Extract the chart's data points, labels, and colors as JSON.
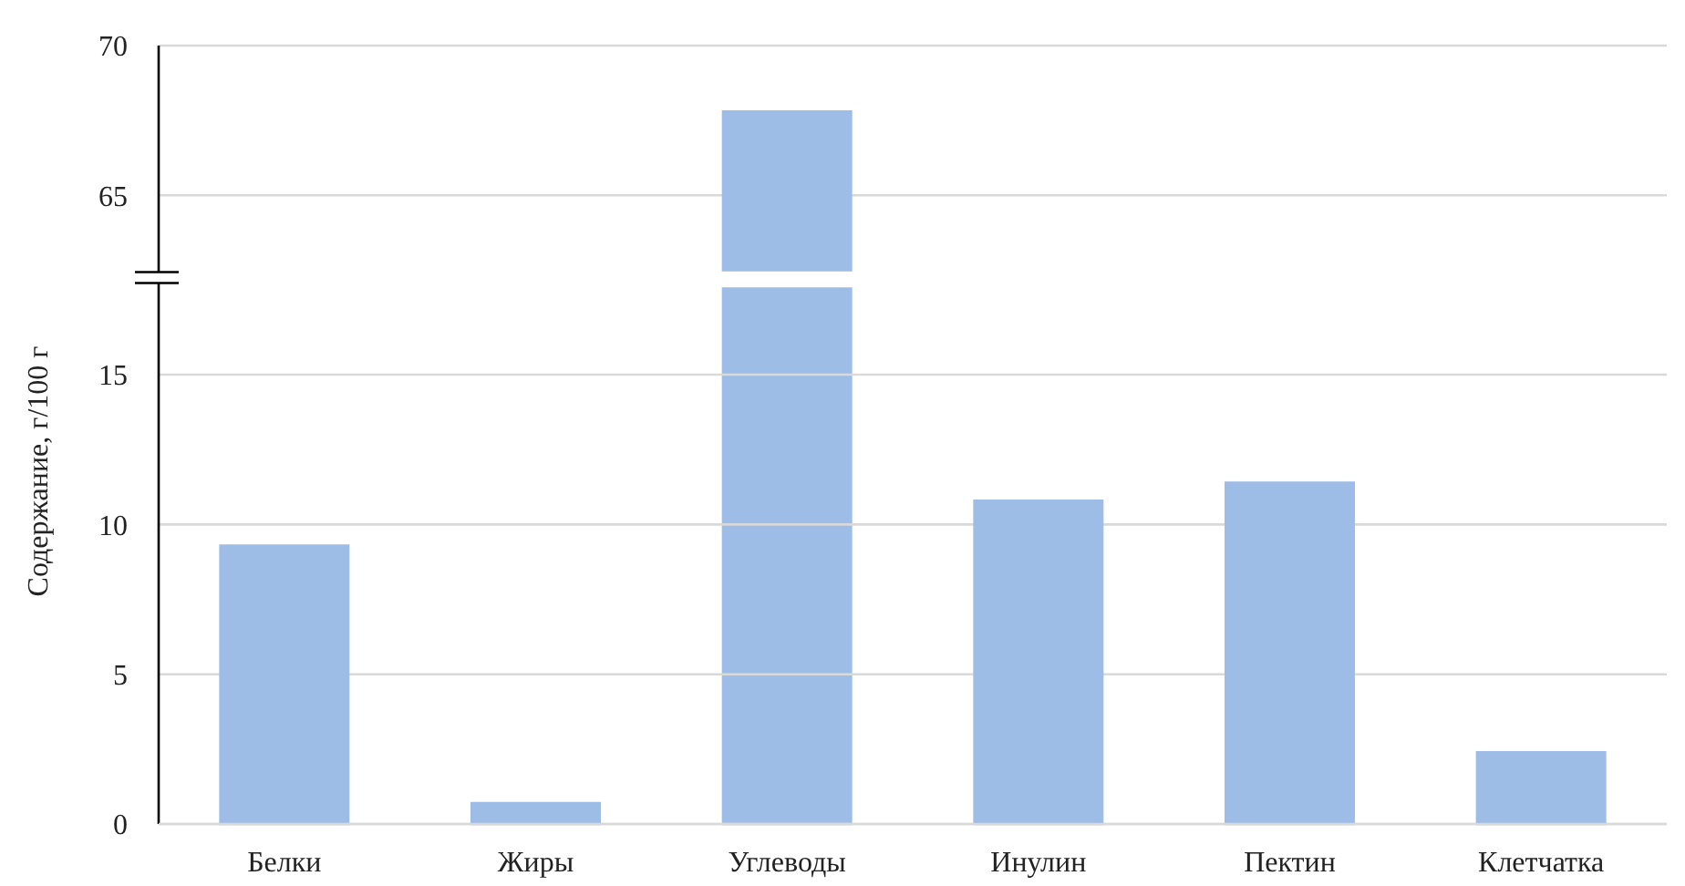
{
  "chart_data": [
    {
      "type": "bar",
      "categories": [
        null,
        null,
        null,
        null,
        null,
        null
      ],
      "values": [
        null,
        null,
        67.8,
        null,
        null,
        null
      ],
      "color": "#9dbde6",
      "ylim": [
        62.5,
        70
      ],
      "yticks": [
        65,
        70
      ],
      "grid": "y",
      "tick_labels": "y"
    },
    {
      "type": "bar",
      "ylabel": "Содержание, г/100 г",
      "categories": [
        "Белки",
        "Жиры",
        "Углеводы",
        "Инулин",
        "Пектин",
        "Клетчатка"
      ],
      "values": [
        9.3,
        0.7,
        null,
        10.8,
        11.4,
        2.4
      ],
      "color": "#9dbde6",
      "ylim": [
        0,
        18
      ],
      "yticks": [
        0,
        5,
        10,
        15
      ],
      "grid": "y"
    }
  ]
}
